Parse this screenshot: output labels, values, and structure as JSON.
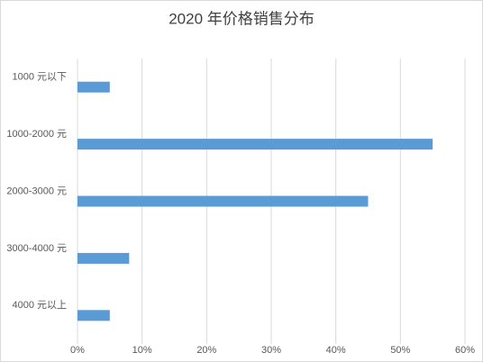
{
  "chart_data": {
    "type": "bar",
    "orientation": "horizontal",
    "title": "2020 年价格销售分布",
    "categories": [
      "1000 元以下",
      "1000-2000 元",
      "2000-3000 元",
      "3000-4000 元",
      "4000 元以上"
    ],
    "values": [
      5,
      55,
      45,
      8,
      5
    ],
    "color": "#5b9bd5",
    "xlim": [
      0,
      60
    ],
    "xticks": [
      {
        "value": 0,
        "label": "0%"
      },
      {
        "value": 10,
        "label": "10%"
      },
      {
        "value": 20,
        "label": "20%"
      },
      {
        "value": 30,
        "label": "30%"
      },
      {
        "value": 40,
        "label": "40%"
      },
      {
        "value": 50,
        "label": "50%"
      },
      {
        "value": 60,
        "label": "60%"
      }
    ],
    "grid": true
  }
}
